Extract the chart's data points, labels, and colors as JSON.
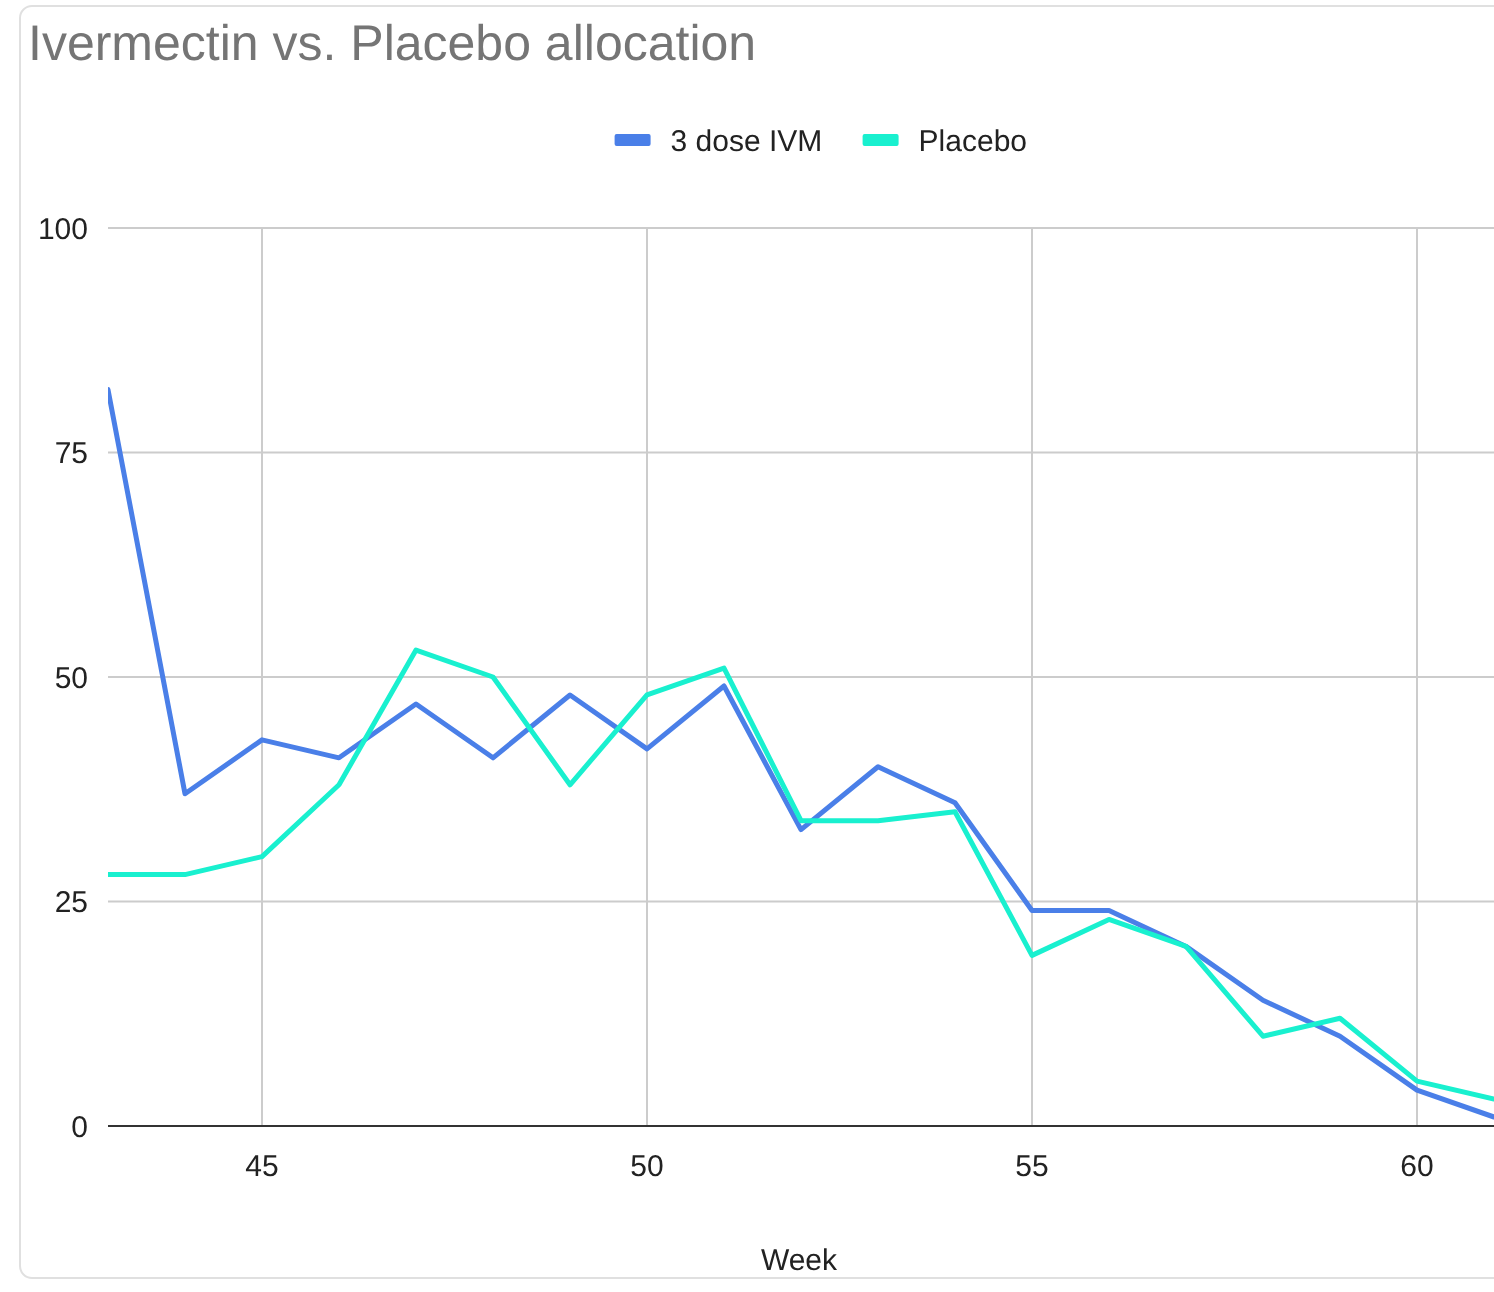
{
  "chart_data": {
    "type": "line",
    "title": "Ivermectin vs. Placebo allocation",
    "xlabel": "Week",
    "x": [
      43,
      44,
      45,
      46,
      47,
      48,
      49,
      50,
      51,
      52,
      53,
      54,
      55,
      56,
      57,
      58,
      59,
      60,
      61
    ],
    "series": [
      {
        "name": "3 dose IVM",
        "color": "#4a7fe8",
        "values": [
          82,
          37,
          43,
          41,
          47,
          41,
          48,
          42,
          49,
          33,
          40,
          36,
          24,
          24,
          20,
          14,
          10,
          4,
          1
        ]
      },
      {
        "name": "Placebo",
        "color": "#19f0cf",
        "values": [
          28,
          28,
          30,
          38,
          53,
          50,
          38,
          48,
          51,
          34,
          34,
          35,
          19,
          23,
          20,
          10,
          12,
          5,
          3
        ]
      }
    ],
    "xlim": [
      43,
      61
    ],
    "xticks": [
      45,
      50,
      55,
      60
    ],
    "ylim": [
      0,
      100
    ],
    "yticks": [
      0,
      25,
      50,
      75,
      100
    ],
    "grid": true,
    "legend": "top",
    "marker": "none",
    "line_style": "solid"
  }
}
